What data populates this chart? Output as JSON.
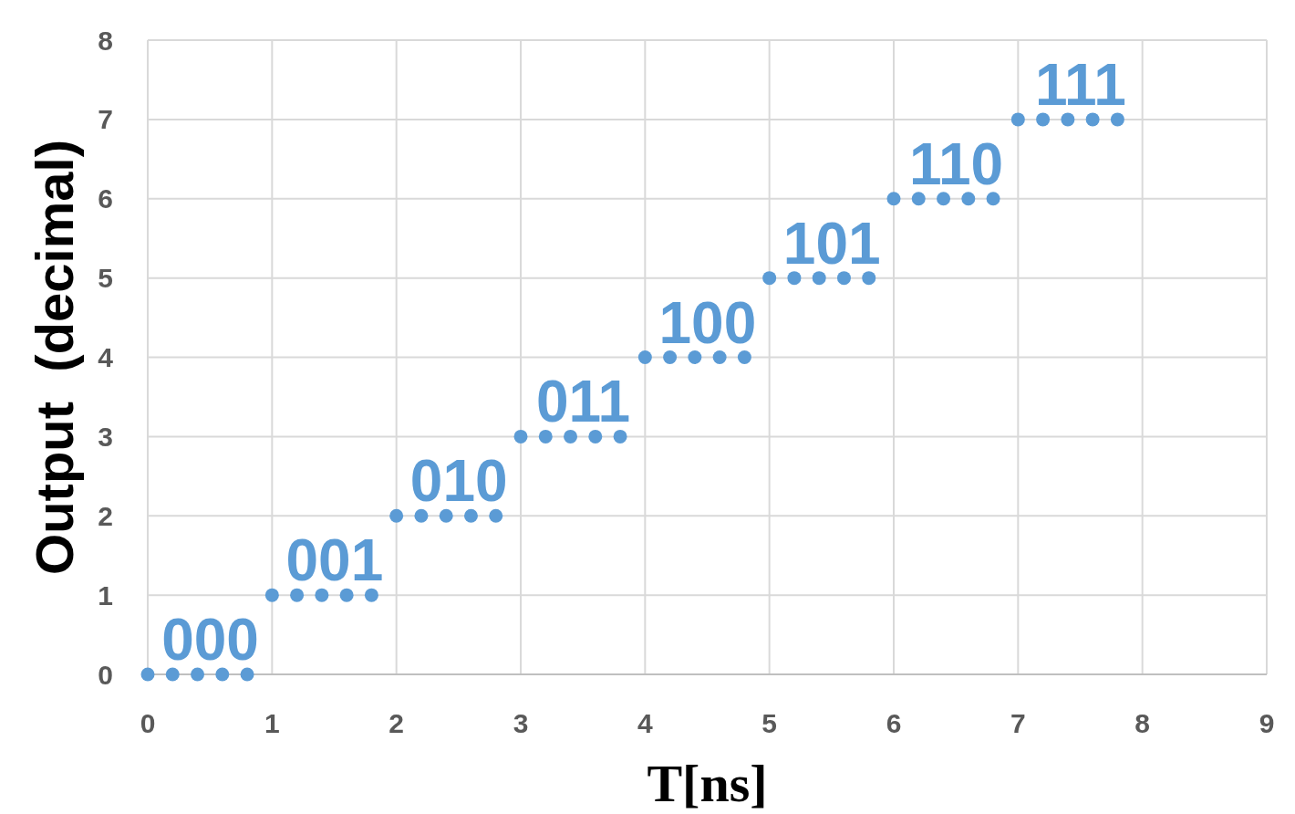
{
  "chart_data": {
    "type": "scatter",
    "xlabel": "T[ns]",
    "ylabel": "Output  (decimal)",
    "xlim": [
      0,
      9
    ],
    "xticks": [
      0,
      1,
      2,
      3,
      4,
      5,
      6,
      7,
      8,
      9
    ],
    "ylim": [
      0,
      8
    ],
    "yticks": [
      0,
      1,
      2,
      3,
      4,
      5,
      6,
      7,
      8
    ],
    "grid": true,
    "marker": "circle",
    "series": [
      {
        "color": "#5b9bd5",
        "x": [
          0,
          0.2,
          0.4,
          0.6,
          0.8,
          1,
          1.2,
          1.4,
          1.6,
          1.8,
          2,
          2.2,
          2.4,
          2.6,
          2.8,
          3,
          3.2,
          3.4,
          3.6,
          3.8,
          4,
          4.2,
          4.4,
          4.6,
          4.8,
          5,
          5.2,
          5.4,
          5.6,
          5.8,
          6,
          6.2,
          6.4,
          6.6,
          6.8,
          7,
          7.2,
          7.4,
          7.6,
          7.8
        ],
        "values": [
          0,
          0,
          0,
          0,
          0,
          1,
          1,
          1,
          1,
          1,
          2,
          2,
          2,
          2,
          2,
          3,
          3,
          3,
          3,
          3,
          4,
          4,
          4,
          4,
          4,
          5,
          5,
          5,
          5,
          5,
          6,
          6,
          6,
          6,
          6,
          7,
          7,
          7,
          7,
          7
        ]
      }
    ],
    "annotations": [
      {
        "text": "000",
        "x": 0.4,
        "y": 0
      },
      {
        "text": "001",
        "x": 1.4,
        "y": 1
      },
      {
        "text": "010",
        "x": 2.4,
        "y": 2
      },
      {
        "text": "011",
        "x": 3.4,
        "y": 3
      },
      {
        "text": "100",
        "x": 4.4,
        "y": 4
      },
      {
        "text": "101",
        "x": 5.4,
        "y": 5
      },
      {
        "text": "110",
        "x": 6.4,
        "y": 6
      },
      {
        "text": "111",
        "x": 7.4,
        "y": 7
      }
    ]
  }
}
